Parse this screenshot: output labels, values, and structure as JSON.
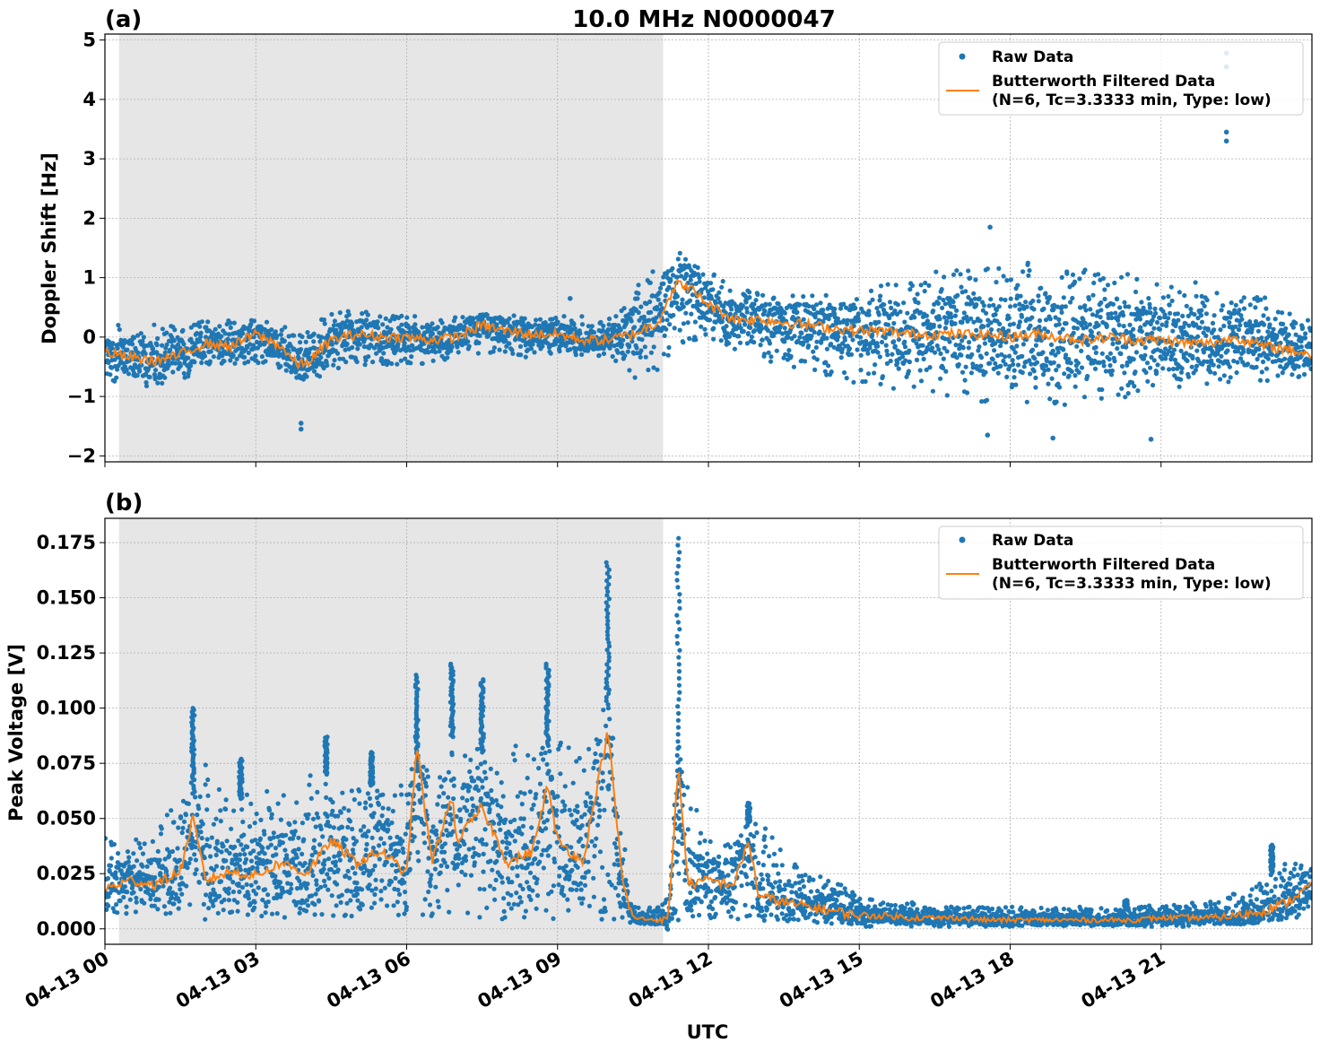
{
  "title": "10.0 MHz N0000047",
  "panel_a_label": "(a)",
  "panel_b_label": "(b)",
  "xlabel": "UTC",
  "xticks": [
    "04-13 00",
    "04-13 03",
    "04-13 06",
    "04-13 09",
    "04-13 12",
    "04-13 15",
    "04-13 18",
    "04-13 21"
  ],
  "legend": {
    "raw": "Raw Data",
    "filtered_line1": "Butterworth Filtered Data",
    "filtered_line2": "(N=6, Tc=3.3333 min, Type: low)"
  },
  "colors": {
    "raw": "#1f77b4",
    "filtered": "#ff7f0e",
    "shade": "#e6e6e6",
    "grid": "#b0b0b0"
  },
  "chart_data": [
    {
      "type": "scatter",
      "panel": "a",
      "ylabel": "Doppler Shift [Hz]",
      "ylim": [
        -2.1,
        5.1
      ],
      "yticks": [
        -2,
        -1,
        0,
        1,
        2,
        3,
        4,
        5
      ],
      "ytick_labels": [
        "−2",
        "−1",
        "0",
        "1",
        "2",
        "3",
        "4",
        "5"
      ],
      "xlim_hours": [
        0,
        24
      ],
      "shaded_interval_hours": [
        0.28,
        11.1
      ],
      "grid": true,
      "legend_position": "top-right",
      "series": [
        {
          "name": "Raw Data",
          "kind": "scatter",
          "envelope": {
            "x": [
              0,
              0.5,
              1,
              1.5,
              2,
              2.5,
              3,
              3.5,
              4,
              4.5,
              5,
              5.5,
              6,
              6.5,
              7,
              7.5,
              8,
              8.5,
              9,
              9.5,
              10,
              10.5,
              11,
              11.5,
              12,
              12.5,
              13,
              13.5,
              14,
              14.5,
              15,
              15.5,
              16,
              16.5,
              17,
              17.5,
              18,
              18.5,
              19,
              19.5,
              20,
              20.5,
              21,
              21.5,
              22,
              22.5,
              23,
              23.5,
              24
            ],
            "low": [
              -0.7,
              -0.85,
              -0.9,
              -0.75,
              -0.5,
              -0.45,
              -0.45,
              -0.55,
              -0.85,
              -0.55,
              -0.45,
              -0.5,
              -0.45,
              -0.45,
              -0.35,
              -0.3,
              -0.3,
              -0.35,
              -0.3,
              -0.3,
              -0.35,
              -0.7,
              -0.6,
              -0.1,
              0.0,
              -0.2,
              -0.35,
              -0.5,
              -0.6,
              -0.7,
              -0.8,
              -0.9,
              -0.95,
              -1.0,
              -1.05,
              -1.1,
              -1.1,
              -1.15,
              -1.15,
              -1.1,
              -1.05,
              -1.0,
              -0.95,
              -0.9,
              -0.85,
              -0.8,
              -0.75,
              -0.7,
              -0.65
            ],
            "high": [
              0.15,
              0.25,
              0.25,
              0.2,
              0.35,
              0.3,
              0.3,
              0.2,
              0.15,
              0.4,
              0.45,
              0.4,
              0.35,
              0.35,
              0.35,
              0.4,
              0.4,
              0.35,
              0.35,
              0.35,
              0.3,
              0.85,
              1.25,
              1.45,
              1.15,
              0.85,
              0.75,
              0.7,
              0.7,
              0.75,
              0.8,
              0.9,
              1.0,
              1.1,
              1.15,
              1.2,
              1.25,
              1.25,
              1.2,
              1.15,
              1.1,
              1.05,
              1.0,
              0.95,
              0.9,
              0.8,
              0.7,
              0.5,
              0.3
            ]
          },
          "notable_points": [
            [
              22.3,
              4.78
            ],
            [
              22.3,
              4.55
            ],
            [
              22.3,
              3.45
            ],
            [
              22.3,
              3.3
            ],
            [
              17.6,
              1.85
            ],
            [
              17.55,
              -1.65
            ],
            [
              18.85,
              -1.7
            ],
            [
              20.8,
              -1.72
            ],
            [
              3.9,
              -1.55
            ],
            [
              3.9,
              -1.45
            ],
            [
              9.25,
              0.65
            ]
          ]
        },
        {
          "name": "Butterworth Filtered Data (N=6, Tc=3.3333 min, Type: low)",
          "kind": "line",
          "x": [
            0,
            0.5,
            1,
            1.5,
            2,
            2.5,
            3,
            3.5,
            3.8,
            4,
            4.5,
            5,
            5.5,
            6,
            6.5,
            7,
            7.5,
            8,
            8.5,
            9,
            9.5,
            10,
            10.5,
            11,
            11.2,
            11.4,
            11.6,
            12,
            12.5,
            13,
            13.5,
            14,
            14.5,
            15,
            15.5,
            16,
            16.5,
            17,
            17.5,
            18,
            18.5,
            19,
            19.5,
            20,
            20.5,
            21,
            21.5,
            22,
            22.5,
            23,
            23.5,
            24
          ],
          "y": [
            -0.25,
            -0.35,
            -0.4,
            -0.3,
            -0.1,
            -0.15,
            0.05,
            -0.15,
            -0.45,
            -0.45,
            -0.05,
            0.05,
            0.0,
            0.0,
            -0.05,
            0.0,
            0.2,
            0.1,
            0.05,
            0.05,
            -0.05,
            -0.05,
            0.05,
            0.25,
            0.65,
            0.9,
            0.85,
            0.55,
            0.3,
            0.3,
            0.25,
            0.2,
            0.15,
            0.1,
            0.1,
            0.05,
            0.05,
            0.05,
            0.05,
            0.0,
            0.05,
            0.0,
            -0.05,
            0.0,
            -0.05,
            -0.05,
            -0.1,
            -0.1,
            0.0,
            -0.15,
            -0.2,
            -0.3
          ]
        }
      ]
    },
    {
      "type": "scatter",
      "panel": "b",
      "ylabel": "Peak Voltage [V]",
      "ylim": [
        -0.007,
        0.186
      ],
      "yticks": [
        0.0,
        0.025,
        0.05,
        0.075,
        0.1,
        0.125,
        0.15,
        0.175
      ],
      "ytick_labels": [
        "0.000",
        "0.025",
        "0.050",
        "0.075",
        "0.100",
        "0.125",
        "0.150",
        "0.175"
      ],
      "xlim_hours": [
        0,
        24
      ],
      "shaded_interval_hours": [
        0.28,
        11.1
      ],
      "grid": true,
      "legend_position": "top-right",
      "series": [
        {
          "name": "Raw Data",
          "kind": "scatter",
          "envelope": {
            "x": [
              0,
              0.5,
              1,
              1.5,
              2,
              2.5,
              3,
              3.5,
              4,
              4.5,
              5,
              5.5,
              6,
              6.5,
              7,
              7.5,
              8,
              8.5,
              9,
              9.5,
              10,
              10.5,
              11,
              11.25,
              11.5,
              12,
              12.5,
              13,
              13.5,
              14,
              14.5,
              15,
              15.5,
              16,
              16.5,
              17,
              17.5,
              18,
              18.5,
              19,
              19.5,
              20,
              20.5,
              21,
              21.5,
              22,
              22.5,
              23,
              23.5,
              24
            ],
            "low": [
              0.005,
              0.006,
              0.006,
              0.007,
              0.006,
              0.006,
              0.006,
              0.005,
              0.005,
              0.005,
              0.005,
              0.005,
              0.004,
              0.004,
              0.004,
              0.004,
              0.004,
              0.004,
              0.004,
              0.004,
              0.004,
              0.002,
              0.002,
              0.002,
              0.003,
              0.004,
              0.004,
              0.004,
              0.003,
              0.002,
              0.002,
              0.001,
              0.001,
              0.001,
              0.001,
              0.001,
              0.001,
              0.001,
              0.001,
              0.001,
              0.001,
              0.001,
              0.001,
              0.001,
              0.001,
              0.002,
              0.002,
              0.003,
              0.004,
              0.006
            ],
            "high": [
              0.045,
              0.04,
              0.045,
              0.06,
              0.075,
              0.055,
              0.065,
              0.06,
              0.07,
              0.07,
              0.065,
              0.065,
              0.07,
              0.075,
              0.09,
              0.08,
              0.085,
              0.08,
              0.085,
              0.08,
              0.1,
              0.01,
              0.01,
              0.02,
              0.07,
              0.04,
              0.045,
              0.05,
              0.035,
              0.025,
              0.022,
              0.015,
              0.012,
              0.012,
              0.011,
              0.01,
              0.01,
              0.01,
              0.01,
              0.01,
              0.01,
              0.01,
              0.01,
              0.011,
              0.012,
              0.013,
              0.017,
              0.022,
              0.03,
              0.035
            ]
          },
          "spikes": [
            [
              1.75,
              0.1
            ],
            [
              2.7,
              0.077
            ],
            [
              4.4,
              0.087
            ],
            [
              5.3,
              0.08
            ],
            [
              6.2,
              0.115
            ],
            [
              6.9,
              0.12
            ],
            [
              7.5,
              0.113
            ],
            [
              8.8,
              0.12
            ],
            [
              10.0,
              0.166
            ],
            [
              11.4,
              0.177
            ],
            [
              12.8,
              0.057
            ],
            [
              20.3,
              0.013
            ],
            [
              23.2,
              0.038
            ]
          ]
        },
        {
          "name": "Butterworth Filtered Data (N=6, Tc=3.3333 min, Type: low)",
          "kind": "line",
          "x": [
            0,
            0.5,
            1,
            1.5,
            1.75,
            2,
            2.5,
            3,
            3.5,
            4,
            4.5,
            5,
            5.5,
            6,
            6.2,
            6.5,
            6.9,
            7,
            7.5,
            8,
            8.5,
            8.8,
            9,
            9.5,
            10,
            10.3,
            10.5,
            11,
            11.2,
            11.4,
            11.6,
            12,
            12.5,
            12.8,
            13,
            13.5,
            14,
            14.5,
            15,
            15.5,
            16,
            16.5,
            17,
            17.5,
            18,
            18.5,
            19,
            19.5,
            20,
            20.5,
            21,
            21.5,
            22,
            22.5,
            23,
            23.5,
            24
          ],
          "y": [
            0.018,
            0.022,
            0.02,
            0.026,
            0.05,
            0.022,
            0.026,
            0.024,
            0.03,
            0.025,
            0.04,
            0.03,
            0.035,
            0.025,
            0.083,
            0.03,
            0.06,
            0.04,
            0.055,
            0.03,
            0.035,
            0.065,
            0.04,
            0.03,
            0.09,
            0.02,
            0.005,
            0.004,
            0.004,
            0.074,
            0.02,
            0.022,
            0.02,
            0.04,
            0.015,
            0.012,
            0.01,
            0.008,
            0.006,
            0.006,
            0.005,
            0.005,
            0.005,
            0.004,
            0.004,
            0.004,
            0.004,
            0.004,
            0.004,
            0.004,
            0.005,
            0.005,
            0.005,
            0.006,
            0.008,
            0.012,
            0.02
          ]
        }
      ]
    }
  ]
}
